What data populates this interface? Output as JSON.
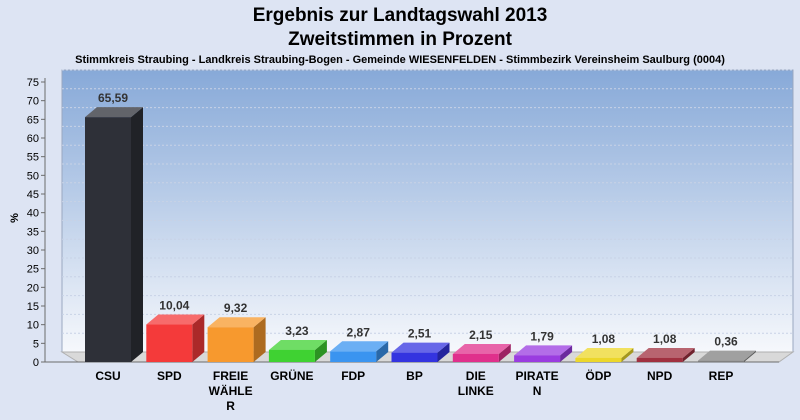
{
  "chart_data": {
    "type": "bar",
    "title": "Ergebnis zur Landtagswahl 2013",
    "subtitle": "Zweitstimmen in Prozent",
    "caption": "Stimmkreis Straubing - Landkreis Straubing-Bogen - Gemeinde WIESENFELDEN - Stimmbezirk Vereinsheim Saulburg (0004)",
    "ylabel": "%",
    "ylim": [
      0,
      75
    ],
    "yticks": [
      0,
      5,
      10,
      15,
      20,
      25,
      30,
      35,
      40,
      45,
      50,
      55,
      60,
      65,
      70,
      75
    ],
    "grid": true,
    "categories": [
      [
        "CSU"
      ],
      [
        "SPD"
      ],
      [
        "FREIE",
        "WÄHLE",
        "R"
      ],
      [
        "GRÜNE"
      ],
      [
        "FDP"
      ],
      [
        "BP"
      ],
      [
        "DIE",
        "LINKE"
      ],
      [
        "PIRATE",
        "N"
      ],
      [
        "ÖDP"
      ],
      [
        "NPD"
      ],
      [
        "REP"
      ]
    ],
    "values": [
      65.59,
      10.04,
      9.32,
      3.23,
      2.87,
      2.51,
      2.15,
      1.79,
      1.08,
      1.08,
      0.36
    ],
    "value_labels": [
      "65,59",
      "10,04",
      "9,32",
      "3,23",
      "2,87",
      "2,51",
      "2,15",
      "1,79",
      "1,08",
      "1,08",
      "0,36"
    ],
    "colors": [
      "#2e3038",
      "#f43a3a",
      "#f7992e",
      "#3fd232",
      "#3a94f0",
      "#3434e0",
      "#e0308c",
      "#9a3ce0",
      "#ecd72a",
      "#a03040",
      "#808080"
    ]
  }
}
